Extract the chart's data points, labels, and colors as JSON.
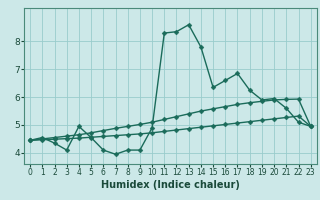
{
  "xlabel": "Humidex (Indice chaleur)",
  "bg_color": "#cce8e8",
  "line_color": "#1a6b5a",
  "grid_color": "#99cccc",
  "x_ticks": [
    0,
    1,
    2,
    3,
    4,
    5,
    6,
    7,
    8,
    9,
    10,
    11,
    12,
    13,
    14,
    15,
    16,
    17,
    18,
    19,
    20,
    21,
    22,
    23
  ],
  "y_ticks": [
    4,
    5,
    6,
    7,
    8
  ],
  "ylim": [
    3.6,
    9.2
  ],
  "xlim": [
    -0.5,
    23.5
  ],
  "line1_x": [
    0,
    1,
    2,
    3,
    4,
    5,
    6,
    7,
    8,
    9,
    10,
    11,
    12,
    13,
    14,
    15,
    16,
    17,
    18,
    19,
    20,
    21,
    22,
    23
  ],
  "line1_y": [
    4.45,
    4.55,
    4.35,
    4.1,
    4.95,
    4.55,
    4.1,
    3.95,
    4.1,
    4.1,
    4.9,
    8.3,
    8.35,
    8.6,
    7.8,
    6.35,
    6.6,
    6.85,
    6.25,
    5.9,
    5.95,
    5.6,
    5.1,
    4.95
  ],
  "line2_x": [
    0,
    1,
    2,
    3,
    4,
    5,
    6,
    7,
    8,
    9,
    10,
    11,
    12,
    13,
    14,
    15,
    16,
    17,
    18,
    19,
    20,
    21,
    22,
    23
  ],
  "line2_y": [
    4.45,
    4.5,
    4.55,
    4.6,
    4.65,
    4.72,
    4.8,
    4.88,
    4.95,
    5.02,
    5.1,
    5.2,
    5.3,
    5.4,
    5.5,
    5.58,
    5.66,
    5.74,
    5.8,
    5.85,
    5.9,
    5.92,
    5.93,
    4.95
  ],
  "line3_x": [
    0,
    1,
    2,
    3,
    4,
    5,
    6,
    7,
    8,
    9,
    10,
    11,
    12,
    13,
    14,
    15,
    16,
    17,
    18,
    19,
    20,
    21,
    22,
    23
  ],
  "line3_y": [
    4.45,
    4.47,
    4.49,
    4.51,
    4.53,
    4.56,
    4.59,
    4.62,
    4.65,
    4.68,
    4.72,
    4.77,
    4.82,
    4.87,
    4.92,
    4.97,
    5.02,
    5.07,
    5.12,
    5.17,
    5.22,
    5.27,
    5.32,
    4.95
  ],
  "markersize": 2.5,
  "linewidth": 1.0
}
